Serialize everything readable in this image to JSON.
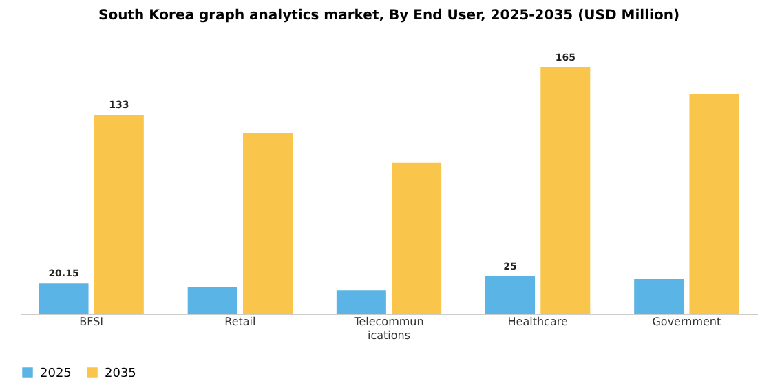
{
  "chart_data": {
    "type": "bar",
    "title": "South Korea graph analytics market, By End User, 2025-2035 (USD Million)",
    "categories": [
      "BFSI",
      "Retail",
      "Telecommunications",
      "Healthcare",
      "Government"
    ],
    "series": [
      {
        "name": "2025",
        "color": "#5ab4e5",
        "values": [
          20.15,
          18,
          15.5,
          25,
          23
        ],
        "value_labels": [
          "20.15",
          null,
          null,
          "25",
          null
        ]
      },
      {
        "name": "2035",
        "color": "#f9c54a",
        "values": [
          133,
          121,
          101,
          165,
          147
        ],
        "value_labels": [
          "133",
          null,
          null,
          "165",
          null
        ]
      }
    ],
    "legend": "bottom",
    "grid": false
  }
}
